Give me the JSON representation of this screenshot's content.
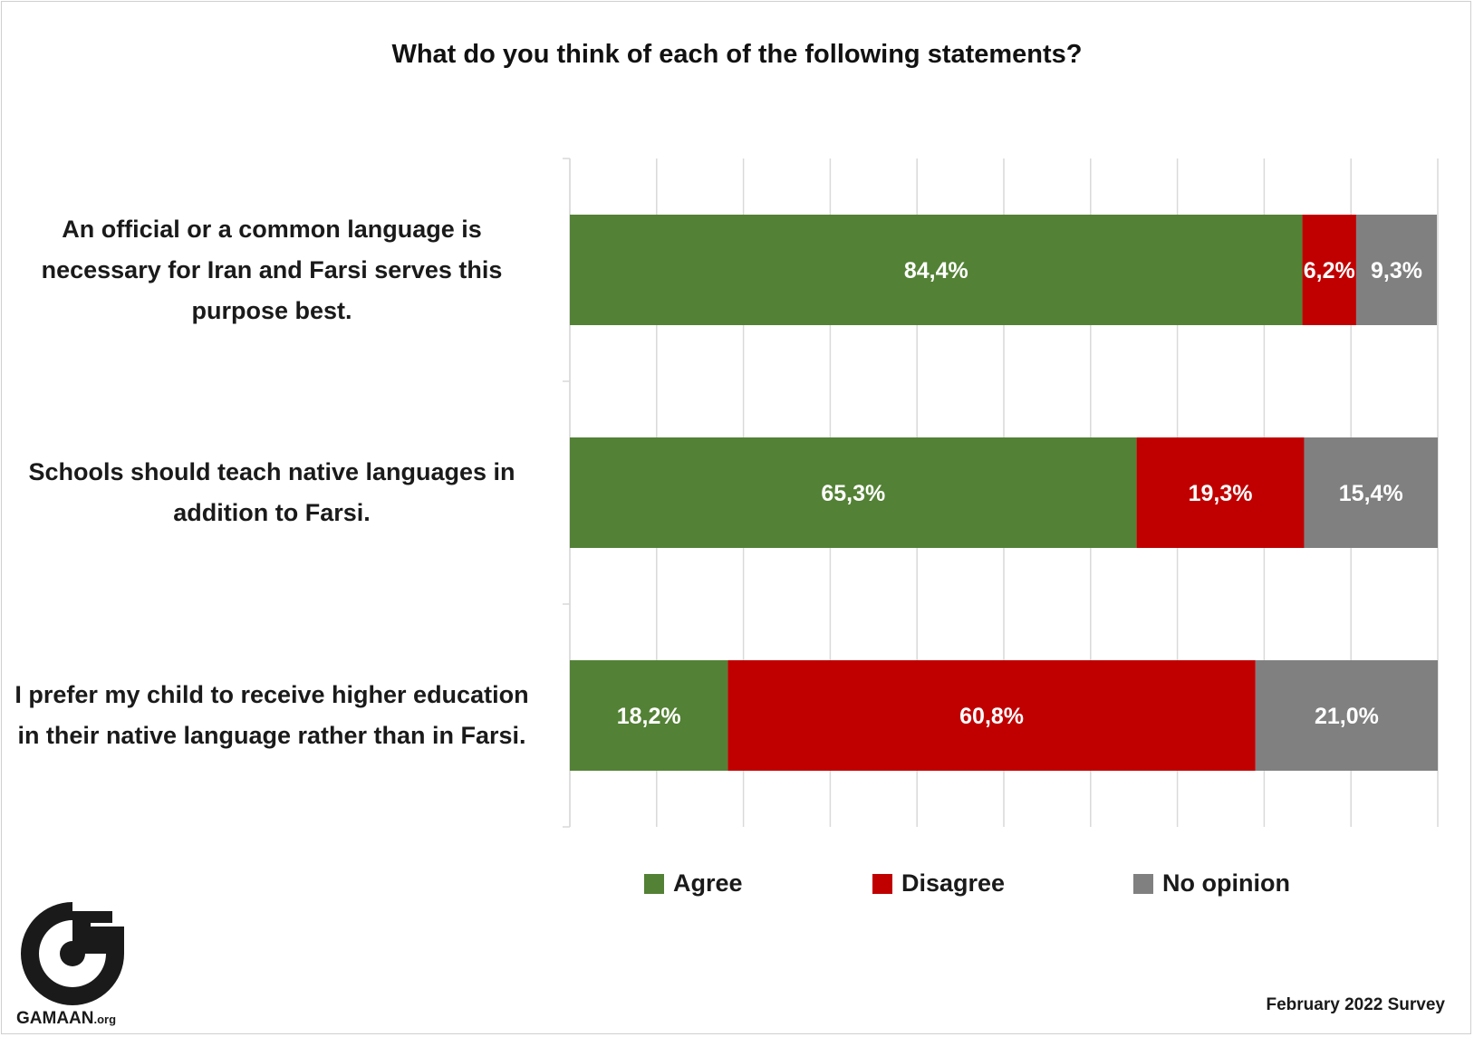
{
  "title": "What do you think of each of the following statements?",
  "note": "February 2022 Survey",
  "logo": {
    "name": "GAMAAN",
    "suffix": ".org"
  },
  "colors": {
    "agree": "#538135",
    "disagree": "#c00000",
    "no_opinion": "#808080"
  },
  "chart_data": {
    "type": "bar",
    "orientation": "horizontal",
    "stacked": true,
    "title": "What do you think of each of the following statements?",
    "categories": [
      "An official or a common language is necessary for Iran and Farsi serves this purpose best.",
      "Schools should teach native languages in addition to Farsi.",
      "I prefer my child to receive higher education in their native language rather than in Farsi."
    ],
    "series": [
      {
        "name": "Agree",
        "values": [
          84.4,
          65.3,
          18.2
        ],
        "labels": [
          "84,4%",
          "65,3%",
          "18,2%"
        ]
      },
      {
        "name": "Disagree",
        "values": [
          6.2,
          19.3,
          60.8
        ],
        "labels": [
          "6,2%",
          "19,3%",
          "60,8%"
        ]
      },
      {
        "name": "No opinion",
        "values": [
          9.3,
          15.4,
          21.0
        ],
        "labels": [
          "9,3%",
          "15,4%",
          "21,0%"
        ]
      }
    ],
    "xlim": [
      0,
      100
    ],
    "grid": true,
    "legend": "bottom"
  },
  "label_lines": [
    [
      "An official or a common language is",
      "necessary for Iran and Farsi serves this",
      "purpose best."
    ],
    [
      "Schools should teach native languages in",
      "addition to Farsi."
    ],
    [
      "I prefer my child to receive higher education",
      "in their native language rather than in Farsi."
    ]
  ]
}
